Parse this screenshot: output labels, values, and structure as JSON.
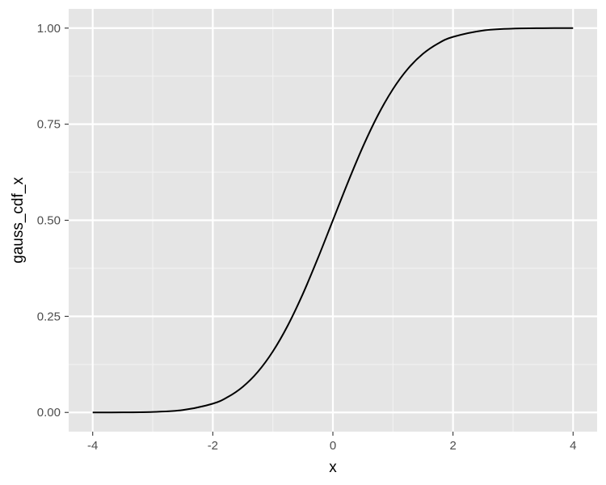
{
  "chart_data": {
    "type": "line",
    "xlabel": "x",
    "ylabel": "gauss_cdf_x",
    "xlim": [
      -4.4,
      4.4
    ],
    "ylim": [
      -0.05,
      1.05
    ],
    "x_ticks": [
      -4,
      -2,
      0,
      2,
      4
    ],
    "x_tick_labels": [
      "-4",
      "-2",
      "0",
      "2",
      "4"
    ],
    "y_ticks": [
      0,
      0.25,
      0.5,
      0.75,
      1
    ],
    "y_tick_labels": [
      "0.00",
      "0.25",
      "0.50",
      "0.75",
      "1.00"
    ],
    "grid": true,
    "legend": "none",
    "colors": {
      "panel_background": "#e5e5e5",
      "grid_major": "#ffffff",
      "grid_minor": "#f2f2f2",
      "tick": "#333333",
      "line": "#000000"
    },
    "series": [
      {
        "x": [
          -4,
          -3.5,
          -3,
          -2.5,
          -2,
          -1.75,
          -1.5,
          -1.25,
          -1,
          -0.75,
          -0.5,
          -0.25,
          0,
          0.25,
          0.5,
          0.75,
          1,
          1.25,
          1.5,
          1.75,
          2,
          2.5,
          3,
          3.5,
          4
        ],
        "y": [
          3e-05,
          0.0002,
          0.0013,
          0.0062,
          0.0228,
          0.0401,
          0.0668,
          0.1056,
          0.1587,
          0.2266,
          0.3085,
          0.4013,
          0.5,
          0.5987,
          0.6915,
          0.7734,
          0.8413,
          0.8944,
          0.9332,
          0.9599,
          0.9772,
          0.9938,
          0.9987,
          0.9998,
          0.99997
        ]
      }
    ]
  }
}
